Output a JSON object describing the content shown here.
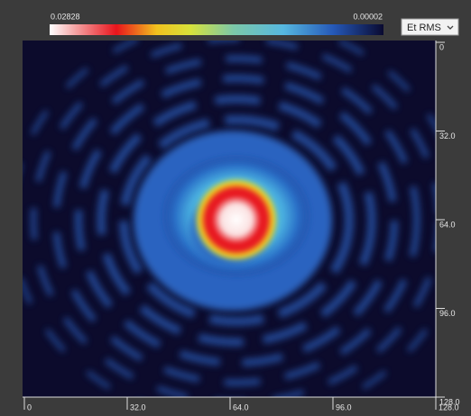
{
  "colorbar": {
    "max_label": "0.02828",
    "min_label": "0.00002"
  },
  "dropdown": {
    "label": "Et RMS"
  },
  "right_axis": {
    "ticks": [
      "0",
      "32.0",
      "64.0",
      "96.0",
      "128.0"
    ]
  },
  "bottom_axis": {
    "ticks": [
      "0",
      "32.0",
      "64.0",
      "96.0",
      "128.0"
    ]
  }
}
